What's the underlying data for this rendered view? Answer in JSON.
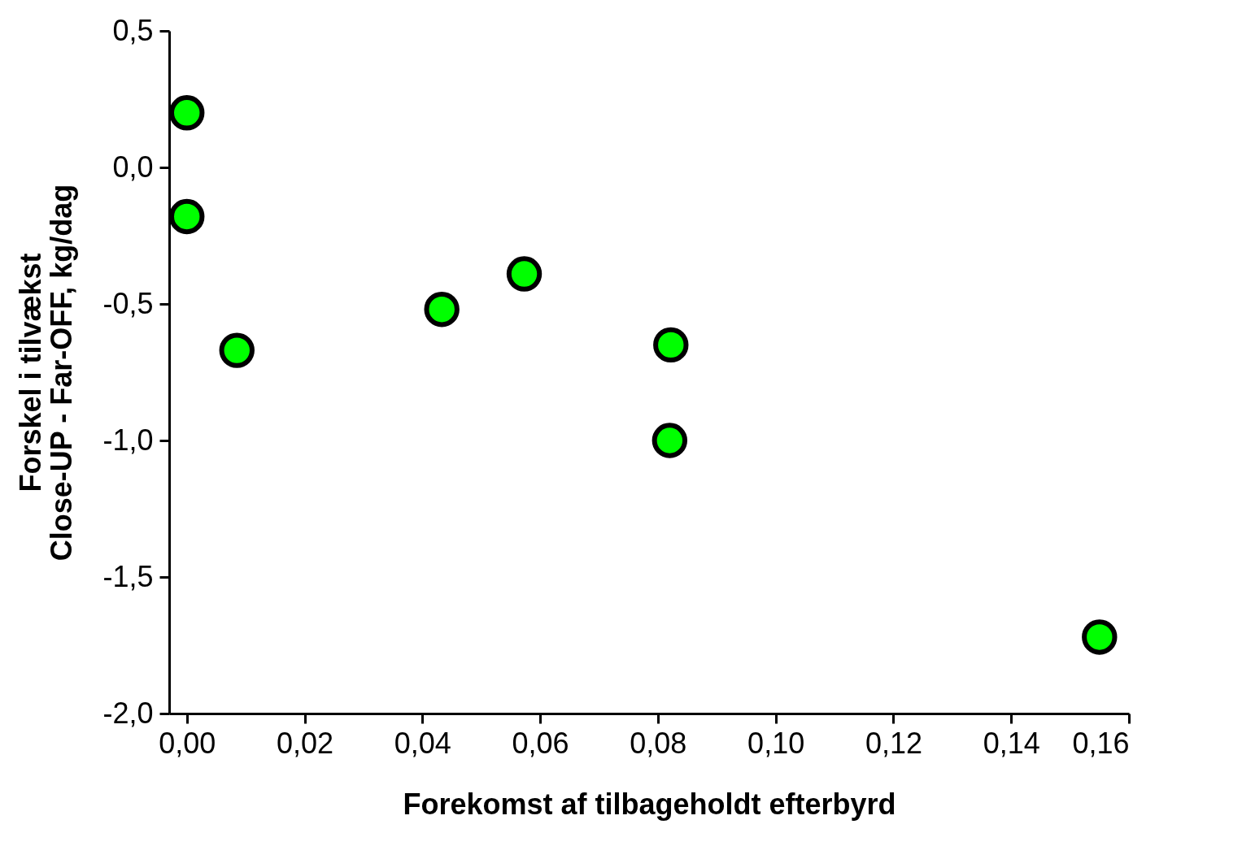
{
  "chart_data": {
    "type": "scatter",
    "xlabel": "Forekomst af tilbageholdt efterbyrd",
    "ylabel": "Forskel i tilvækst\nClose-UP - Far-OFF, kg/dag",
    "x": [
      0.0,
      0.0,
      0.0085,
      0.0433,
      0.0573,
      0.0822,
      0.082,
      0.155
    ],
    "series": [
      {
        "color": "#00ff00",
        "values": [
          0.2,
          -0.18,
          -0.67,
          -0.52,
          -0.39,
          -0.65,
          -1.0,
          -1.72
        ]
      }
    ],
    "xlim": [
      -0.003,
      0.16
    ],
    "xticks": [
      {
        "value": 0,
        "label": "0,00"
      },
      {
        "value": 0.02,
        "label": "0,02"
      },
      {
        "value": 0.04,
        "label": "0,04"
      },
      {
        "value": 0.06,
        "label": "0,06"
      },
      {
        "value": 0.08,
        "label": "0,08"
      },
      {
        "value": 0.1,
        "label": "0,10"
      },
      {
        "value": 0.12,
        "label": "0,12"
      },
      {
        "value": 0.14,
        "label": "0,14"
      },
      {
        "value": 0.16,
        "label": "0,16"
      }
    ],
    "ylim": [
      -2,
      0.5
    ],
    "yticks": [
      {
        "value": -2,
        "label": "-2,0"
      },
      {
        "value": -1.5,
        "label": "-1,5"
      },
      {
        "value": -1,
        "label": "-1,0"
      },
      {
        "value": -0.5,
        "label": "-0,5"
      },
      {
        "value": 0,
        "label": "0,0"
      },
      {
        "value": 0.5,
        "label": "0,5"
      }
    ],
    "grid": false,
    "marker": "circle"
  }
}
